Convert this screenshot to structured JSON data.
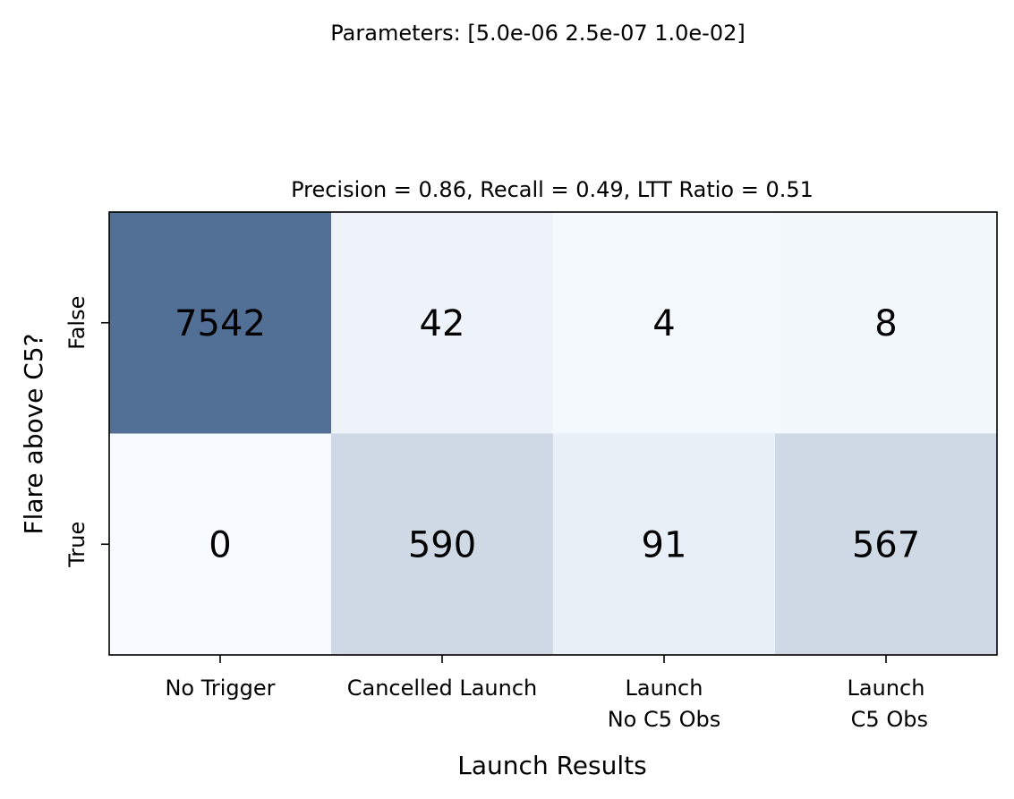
{
  "chart_data": {
    "type": "heatmap",
    "suptitle": "Parameters: [5.0e-06 2.5e-07 1.0e-02]",
    "title": "Precision = 0.86, Recall = 0.49, LTT Ratio = 0.51",
    "xlabel": "Launch Results",
    "ylabel": "Flare above C5?",
    "x_categories": [
      [
        "No Trigger"
      ],
      [
        "Cancelled Launch"
      ],
      [
        "Launch",
        "No C5 Obs"
      ],
      [
        "Launch",
        " C5 Obs"
      ]
    ],
    "y_categories": [
      "False",
      "True"
    ],
    "values": [
      [
        7542,
        42,
        4,
        8
      ],
      [
        0,
        590,
        91,
        567
      ]
    ],
    "colormap": "Blues",
    "grid": false
  }
}
